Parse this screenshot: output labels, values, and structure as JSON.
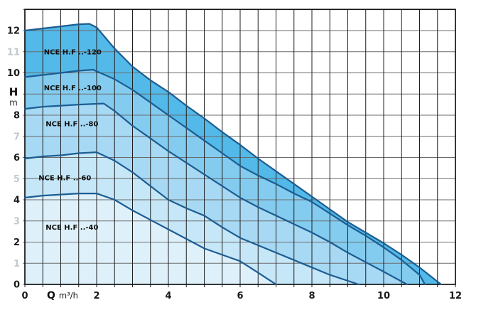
{
  "chart_data": {
    "type": "area",
    "title": "",
    "xlabel": {
      "symbol": "Q",
      "unit": "m³/h"
    },
    "ylabel": {
      "symbol": "H",
      "unit": "m"
    },
    "xlim": [
      0,
      12
    ],
    "ylim": [
      0,
      13
    ],
    "grid": {
      "x_step": 0.5,
      "y_step": 1,
      "vline_color": "#1f1f1f",
      "hline_color": "#6b6b6b",
      "border_color": "#141414"
    },
    "x_major_ticks": [
      0,
      2,
      4,
      6,
      8,
      10,
      12
    ],
    "y_major_ticks": [
      0,
      2,
      4,
      6,
      8,
      10,
      12
    ],
    "y_minor_tick_labels": [
      1,
      3,
      5,
      7,
      11
    ],
    "tick_color": "#1a1a1a",
    "minor_tick_color": "#c3c9cd",
    "curve_line_color": "#1d5d92",
    "legend_position": "inside-left",
    "series": [
      {
        "name": "NCE H.F ..-120",
        "fill": "#53b9e8",
        "label_pos": {
          "q": 0.53,
          "h": 11.0
        },
        "points": [
          [
            0,
            12.0
          ],
          [
            0.5,
            12.1
          ],
          [
            1,
            12.2
          ],
          [
            1.5,
            12.3
          ],
          [
            1.8,
            12.32
          ],
          [
            2,
            12.15
          ],
          [
            2.5,
            11.15
          ],
          [
            3,
            10.3
          ],
          [
            3.5,
            9.65
          ],
          [
            4,
            9.1
          ],
          [
            4.5,
            8.45
          ],
          [
            5,
            7.85
          ],
          [
            5.5,
            7.2
          ],
          [
            6,
            6.6
          ],
          [
            6.5,
            5.95
          ],
          [
            7,
            5.35
          ],
          [
            7.5,
            4.75
          ],
          [
            8,
            4.15
          ],
          [
            8.5,
            3.55
          ],
          [
            9,
            2.95
          ],
          [
            9.5,
            2.45
          ],
          [
            10,
            1.95
          ],
          [
            10.5,
            1.4
          ],
          [
            11,
            0.8
          ],
          [
            11.6,
            0
          ]
        ]
      },
      {
        "name": "NCE H.F ..-100",
        "fill": "#84ccef",
        "label_pos": {
          "q": 0.53,
          "h": 9.3
        },
        "points": [
          [
            0,
            9.8
          ],
          [
            0.5,
            9.9
          ],
          [
            1,
            10.0
          ],
          [
            1.5,
            10.1
          ],
          [
            1.9,
            10.15
          ],
          [
            2.5,
            9.7
          ],
          [
            3,
            9.2
          ],
          [
            3.5,
            8.6
          ],
          [
            4,
            8.0
          ],
          [
            4.5,
            7.4
          ],
          [
            5,
            6.8
          ],
          [
            5.5,
            6.2
          ],
          [
            6,
            5.6
          ],
          [
            6.5,
            5.15
          ],
          [
            7,
            4.75
          ],
          [
            7.5,
            4.3
          ],
          [
            8,
            3.9
          ],
          [
            8.5,
            3.35
          ],
          [
            9,
            2.8
          ],
          [
            9.5,
            2.3
          ],
          [
            10,
            1.75
          ],
          [
            10.5,
            1.15
          ],
          [
            11,
            0.45
          ],
          [
            11.15,
            0
          ]
        ]
      },
      {
        "name": "NCE H.F ..-80",
        "fill": "#a7d9f4",
        "label_pos": {
          "q": 0.58,
          "h": 7.6
        },
        "points": [
          [
            0,
            8.3
          ],
          [
            0.5,
            8.4
          ],
          [
            1,
            8.45
          ],
          [
            1.5,
            8.5
          ],
          [
            2.2,
            8.55
          ],
          [
            2.5,
            8.2
          ],
          [
            3,
            7.5
          ],
          [
            3.5,
            6.9
          ],
          [
            4,
            6.3
          ],
          [
            4.5,
            5.75
          ],
          [
            5,
            5.2
          ],
          [
            5.5,
            4.65
          ],
          [
            6,
            4.1
          ],
          [
            6.5,
            3.65
          ],
          [
            7,
            3.25
          ],
          [
            7.5,
            2.85
          ],
          [
            8,
            2.45
          ],
          [
            8.5,
            2.0
          ],
          [
            9,
            1.5
          ],
          [
            9.5,
            1.05
          ],
          [
            10,
            0.6
          ],
          [
            10.65,
            0
          ]
        ]
      },
      {
        "name": "NCE H.F ..-60",
        "fill": "#c6e7f8",
        "label_pos": {
          "q": 0.38,
          "h": 5.05
        },
        "points": [
          [
            0,
            5.95
          ],
          [
            0.5,
            6.05
          ],
          [
            1,
            6.1
          ],
          [
            1.5,
            6.2
          ],
          [
            2,
            6.25
          ],
          [
            2.5,
            5.85
          ],
          [
            3,
            5.3
          ],
          [
            3.5,
            4.65
          ],
          [
            4,
            4.0
          ],
          [
            4.5,
            3.6
          ],
          [
            5,
            3.25
          ],
          [
            5.5,
            2.7
          ],
          [
            6,
            2.2
          ],
          [
            6.5,
            1.85
          ],
          [
            7,
            1.5
          ],
          [
            7.5,
            1.15
          ],
          [
            8,
            0.8
          ],
          [
            8.5,
            0.45
          ],
          [
            9.3,
            0
          ]
        ]
      },
      {
        "name": "NCE H.F ..-40",
        "fill": "#def1fb",
        "label_pos": {
          "q": 0.58,
          "h": 2.7
        },
        "points": [
          [
            0,
            4.1
          ],
          [
            0.5,
            4.2
          ],
          [
            1,
            4.25
          ],
          [
            1.5,
            4.3
          ],
          [
            2,
            4.3
          ],
          [
            2.5,
            4.0
          ],
          [
            3,
            3.5
          ],
          [
            3.5,
            3.05
          ],
          [
            4,
            2.6
          ],
          [
            4.5,
            2.15
          ],
          [
            5,
            1.7
          ],
          [
            5.5,
            1.4
          ],
          [
            6,
            1.1
          ],
          [
            6.5,
            0.55
          ],
          [
            7,
            0
          ]
        ]
      }
    ]
  }
}
